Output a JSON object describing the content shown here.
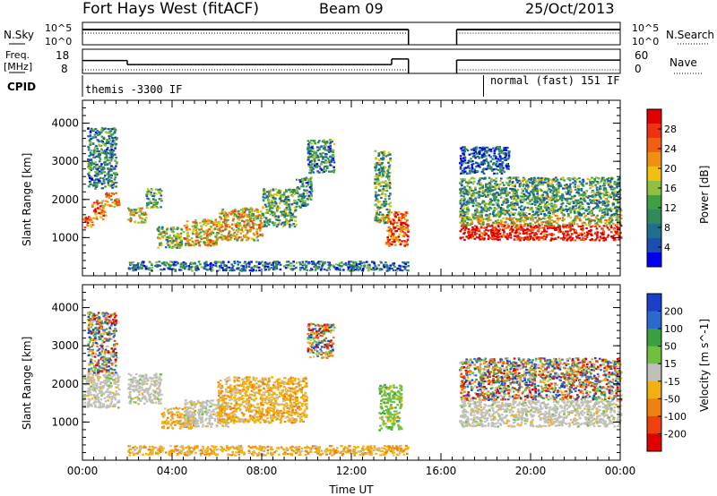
{
  "header": {
    "title": "Fort Hays West (fitACF)",
    "beam": "Beam 09",
    "date": "25/Oct/2013"
  },
  "status_panels": {
    "nsky_label": "N.Sky",
    "nsky_ticks": [
      "10^5",
      "10^0"
    ],
    "nsearch_label": "N.Search",
    "freq_label": "Freq.",
    "freq_unit": "[MHz]",
    "freq_ticks": [
      "18",
      "8"
    ],
    "nave_ticks": [
      "60",
      "0"
    ],
    "nave_label": "Nave",
    "cpid_label": "CPID",
    "cpid_1": "themis -3300 IF",
    "cpid_2": "normal (fast) 151 IF",
    "freq_segments": [
      {
        "t0": 0.0,
        "t1": 2.0,
        "mhz": 14.0
      },
      {
        "t0": 2.0,
        "t1": 13.8,
        "mhz": 12.1
      },
      {
        "t0": 13.8,
        "t1": 14.55,
        "mhz": 14.7
      },
      {
        "t0": 16.7,
        "t1": 24.0,
        "mhz": 14.2
      }
    ],
    "gap": [
      14.55,
      16.7
    ],
    "cpid_change_hour": 17.9
  },
  "chart_data": [
    {
      "type": "heatmap",
      "name": "power",
      "xlabel": "",
      "ylabel": "Slant Range [km]",
      "xlim": [
        0,
        24
      ],
      "ylim": [
        0,
        4600
      ],
      "yticks": [
        "1000",
        "2000",
        "3000",
        "4000"
      ],
      "colorbar_label": "Power [dB]",
      "colorbar_ticks": [
        "4",
        "8",
        "12",
        "16",
        "20",
        "24",
        "28"
      ],
      "colorbar_colors": [
        "#0000f0",
        "#1a4fb0",
        "#1e6e8c",
        "#2e8a5a",
        "#40a040",
        "#90c040",
        "#f0c010",
        "#f09010",
        "#f06010",
        "#f03010",
        "#e00000"
      ],
      "regions": [
        {
          "t0": 0.0,
          "t1": 0.4,
          "r0": 1250,
          "r1": 1600,
          "level": 0.8
        },
        {
          "t0": 0.4,
          "t1": 1.0,
          "r0": 1500,
          "r1": 2000,
          "level": 0.7
        },
        {
          "t0": 1.0,
          "t1": 1.6,
          "r0": 1800,
          "r1": 2200,
          "level": 0.65
        },
        {
          "t0": 0.2,
          "t1": 1.5,
          "r0": 2300,
          "r1": 3900,
          "level": 0.3
        },
        {
          "t0": 2.0,
          "t1": 2.8,
          "r0": 1400,
          "r1": 1800,
          "level": 0.6
        },
        {
          "t0": 2.8,
          "t1": 3.5,
          "r0": 1800,
          "r1": 2300,
          "level": 0.4
        },
        {
          "t0": 3.3,
          "t1": 4.5,
          "r0": 750,
          "r1": 1300,
          "level": 0.45
        },
        {
          "t0": 4.5,
          "t1": 6.0,
          "r0": 800,
          "r1": 1500,
          "level": 0.6
        },
        {
          "t0": 6.0,
          "t1": 8.0,
          "r0": 950,
          "r1": 1800,
          "level": 0.6
        },
        {
          "t0": 8.0,
          "t1": 9.5,
          "r0": 1300,
          "r1": 2300,
          "level": 0.4
        },
        {
          "t0": 9.5,
          "t1": 10.2,
          "r0": 1800,
          "r1": 2600,
          "level": 0.3
        },
        {
          "t0": 10.0,
          "t1": 11.2,
          "r0": 2700,
          "r1": 3600,
          "level": 0.3
        },
        {
          "t0": 13.0,
          "t1": 13.7,
          "r0": 1400,
          "r1": 3300,
          "level": 0.4
        },
        {
          "t0": 13.5,
          "t1": 14.5,
          "r0": 800,
          "r1": 1700,
          "level": 0.8
        },
        {
          "t0": 16.8,
          "t1": 24.0,
          "r0": 950,
          "r1": 1350,
          "level": 0.95
        },
        {
          "t0": 16.8,
          "t1": 24.0,
          "r0": 1350,
          "r1": 1600,
          "level": 0.55
        },
        {
          "t0": 16.8,
          "t1": 24.0,
          "r0": 1600,
          "r1": 2600,
          "level": 0.35
        },
        {
          "t0": 16.8,
          "t1": 19.0,
          "r0": 2700,
          "r1": 3400,
          "level": 0.15
        },
        {
          "t0": 2.0,
          "t1": 14.5,
          "r0": 150,
          "r1": 400,
          "level": 0.25
        }
      ]
    },
    {
      "type": "heatmap",
      "name": "velocity",
      "xlabel": "Time UT",
      "ylabel": "Slant Range [km]",
      "xlim": [
        0,
        24
      ],
      "ylim": [
        0,
        4600
      ],
      "xticks": [
        "00:00",
        "04:00",
        "08:00",
        "12:00",
        "16:00",
        "20:00",
        "00:00"
      ],
      "yticks": [
        "1000",
        "2000",
        "3000",
        "4000"
      ],
      "colorbar_label": "Velocity [m s^-1]",
      "colorbar_ticks": [
        "200",
        "100",
        "50",
        "15",
        "-15",
        "-50",
        "-100",
        "-200"
      ],
      "colorbar_colors": [
        "#1a3fc8",
        "#2a6ad0",
        "#3aa040",
        "#70c040",
        "#c0c0b8",
        "#f0b010",
        "#f08010",
        "#f04010",
        "#e00000"
      ],
      "regions": [
        {
          "t0": 0.0,
          "t1": 1.6,
          "r0": 1400,
          "r1": 2300,
          "color": "ground"
        },
        {
          "t0": 0.2,
          "t1": 1.5,
          "r0": 2300,
          "r1": 3900,
          "color": "mixed"
        },
        {
          "t0": 2.0,
          "t1": 3.5,
          "r0": 1500,
          "r1": 2300,
          "color": "ground"
        },
        {
          "t0": 3.5,
          "t1": 5.0,
          "r0": 850,
          "r1": 1400,
          "color": "neg"
        },
        {
          "t0": 4.5,
          "t1": 6.5,
          "r0": 900,
          "r1": 1600,
          "color": "ground"
        },
        {
          "t0": 6.0,
          "t1": 10.0,
          "r0": 1000,
          "r1": 2200,
          "color": "neg"
        },
        {
          "t0": 10.0,
          "t1": 11.2,
          "r0": 2700,
          "r1": 3600,
          "color": "mixed"
        },
        {
          "t0": 13.2,
          "t1": 14.2,
          "r0": 800,
          "r1": 2000,
          "color": "pos"
        },
        {
          "t0": 16.8,
          "t1": 24.0,
          "r0": 900,
          "r1": 1600,
          "color": "ground"
        },
        {
          "t0": 16.8,
          "t1": 24.0,
          "r0": 1600,
          "r1": 2700,
          "color": "mixed"
        },
        {
          "t0": 2.0,
          "t1": 14.5,
          "r0": 150,
          "r1": 400,
          "color": "neg"
        }
      ]
    }
  ]
}
